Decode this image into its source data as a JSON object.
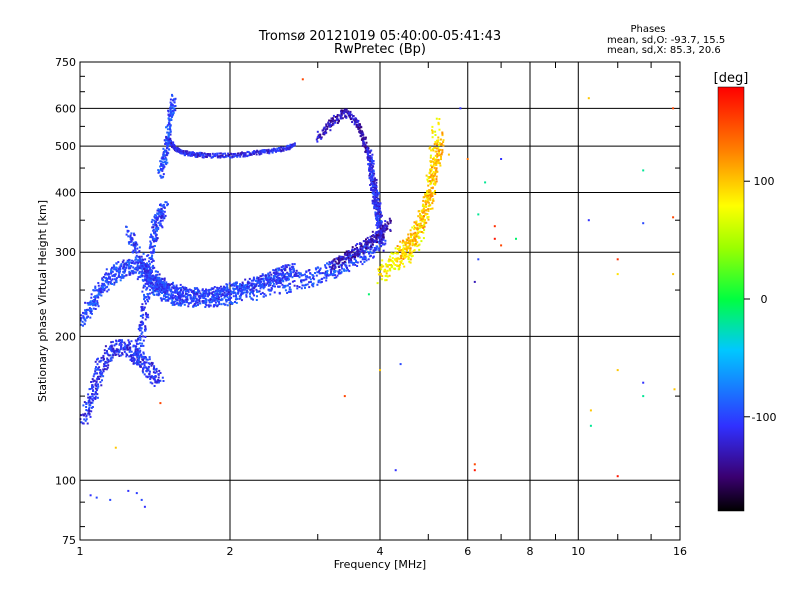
{
  "chart_data": {
    "type": "scatter",
    "title": "Tromsø 20121019 05:40:00-05:41:43",
    "subtitle": "RwPretec (Bp)",
    "xlabel": "Frequency [MHz]",
    "ylabel": "Stationary phase Virtual Height [km]",
    "x_scale": "log",
    "y_scale": "log",
    "xlim": [
      1,
      16
    ],
    "ylim": [
      75,
      750
    ],
    "x_ticks": [
      1,
      2,
      4,
      6,
      8,
      10,
      16
    ],
    "x_tick_labels": [
      "1",
      "2",
      "4",
      "6",
      "8",
      "10",
      "16"
    ],
    "y_ticks": [
      75,
      100,
      200,
      300,
      400,
      500,
      600,
      750
    ],
    "y_tick_labels": [
      "75",
      "100",
      "200",
      "300",
      "400",
      "500",
      "600",
      "750"
    ],
    "grid": true,
    "phases_box": {
      "title": "Phases",
      "line_o": "mean, sd,O: -93.7, 15.5",
      "line_x": "mean, sd,X:  85.3, 20.6"
    },
    "colorbar": {
      "label": "[deg]",
      "range": [
        -180,
        180
      ],
      "ticks": [
        100,
        0,
        -100
      ],
      "tick_labels": [
        "100",
        "0",
        "-100"
      ]
    },
    "traces": [
      {
        "x": [
          1.0,
          1.05,
          1.08,
          1.12,
          1.16,
          1.2,
          1.25,
          1.3,
          1.35,
          1.38,
          1.42,
          1.46,
          1.5,
          1.55,
          1.6,
          1.7,
          1.8,
          1.9,
          2.0,
          2.2,
          2.4,
          2.6,
          2.8,
          3.0,
          3.2,
          3.4,
          3.6,
          3.8,
          4.0
        ],
        "y": [
          215,
          230,
          245,
          258,
          268,
          275,
          280,
          278,
          270,
          262,
          255,
          250,
          246,
          243,
          241,
          240,
          240,
          241,
          243,
          247,
          252,
          257,
          262,
          268,
          275,
          283,
          292,
          302,
          315
        ],
        "phase": -100,
        "spread": 0.06
      },
      {
        "x": [
          1.25,
          1.3,
          1.35,
          1.4,
          1.45,
          1.5,
          1.6,
          1.7,
          1.8,
          1.9,
          2.0,
          2.1,
          2.2,
          2.3,
          2.4,
          2.5,
          2.6,
          2.7
        ],
        "y": [
          330,
          300,
          280,
          268,
          258,
          252,
          246,
          244,
          244,
          246,
          249,
          252,
          256,
          260,
          264,
          268,
          272,
          276
        ],
        "phase": -105,
        "spread": 0.05
      },
      {
        "x": [
          1.02,
          1.05,
          1.08,
          1.1,
          1.15,
          1.2,
          1.25,
          1.3,
          1.35,
          1.4,
          1.45
        ],
        "y": [
          135,
          145,
          160,
          175,
          185,
          190,
          188,
          182,
          175,
          168,
          162
        ],
        "phase": -110,
        "spread": 0.06
      },
      {
        "x": [
          1.3,
          1.33,
          1.35,
          1.38,
          1.4,
          1.42,
          1.45,
          1.48
        ],
        "y": [
          180,
          200,
          230,
          270,
          310,
          340,
          360,
          370
        ],
        "phase": -105,
        "spread": 0.06
      },
      {
        "x": [
          1.5,
          1.55,
          1.6,
          1.7,
          1.8,
          2.0,
          2.2,
          2.4,
          2.6,
          2.7
        ],
        "y": [
          520,
          495,
          485,
          480,
          478,
          478,
          482,
          488,
          495,
          502
        ],
        "phase": -115,
        "spread": 0.015
      },
      {
        "x": [
          1.45,
          1.48,
          1.5,
          1.52,
          1.55
        ],
        "y": [
          440,
          470,
          520,
          580,
          630
        ],
        "phase": -100,
        "spread": 0.04
      },
      {
        "x": [
          3.0,
          3.2,
          3.4,
          3.6,
          3.7,
          3.8,
          3.9,
          3.95,
          4.0
        ],
        "y": [
          520,
          560,
          590,
          560,
          520,
          480,
          420,
          380,
          340
        ],
        "phase": -130,
        "spread": 0.03
      },
      {
        "x": [
          3.8,
          3.85,
          3.9,
          3.95,
          4.0,
          4.05
        ],
        "y": [
          480,
          440,
          400,
          370,
          340,
          310
        ],
        "phase": -110,
        "spread": 0.05
      },
      {
        "x": [
          3.2,
          3.4,
          3.6,
          3.8,
          4.0,
          4.2
        ],
        "y": [
          282,
          292,
          302,
          315,
          328,
          345
        ],
        "phase": -130,
        "spread": 0.04
      },
      {
        "x": [
          4.0,
          4.2,
          4.4,
          4.6,
          4.8,
          5.0,
          5.1,
          5.2
        ],
        "y": [
          270,
          280,
          292,
          305,
          330,
          380,
          450,
          560
        ],
        "phase": 85,
        "spread": 0.07
      },
      {
        "x": [
          4.4,
          4.6,
          4.8,
          5.0,
          5.1,
          5.2,
          5.3
        ],
        "y": [
          300,
          315,
          340,
          380,
          420,
          470,
          520
        ],
        "phase": 105,
        "spread": 0.06
      }
    ],
    "scatter": [
      {
        "x": 1.05,
        "y": 93,
        "phase": -110
      },
      {
        "x": 1.08,
        "y": 92,
        "phase": -100
      },
      {
        "x": 1.15,
        "y": 91,
        "phase": -100
      },
      {
        "x": 1.25,
        "y": 95,
        "phase": -110
      },
      {
        "x": 1.3,
        "y": 94,
        "phase": -105
      },
      {
        "x": 1.33,
        "y": 91,
        "phase": -100
      },
      {
        "x": 1.35,
        "y": 88,
        "phase": -110
      },
      {
        "x": 1.45,
        "y": 145,
        "phase": 150
      },
      {
        "x": 1.18,
        "y": 117,
        "phase": 100
      },
      {
        "x": 2.8,
        "y": 690,
        "phase": 150
      },
      {
        "x": 3.4,
        "y": 150,
        "phase": 150
      },
      {
        "x": 4.3,
        "y": 105,
        "phase": -110
      },
      {
        "x": 4.4,
        "y": 175,
        "phase": -100
      },
      {
        "x": 4.0,
        "y": 170,
        "phase": 100
      },
      {
        "x": 6.2,
        "y": 108,
        "phase": 150
      },
      {
        "x": 6.2,
        "y": 105,
        "phase": 170
      },
      {
        "x": 6.3,
        "y": 360,
        "phase": -20
      },
      {
        "x": 6.3,
        "y": 290,
        "phase": -100
      },
      {
        "x": 6.2,
        "y": 260,
        "phase": -130
      },
      {
        "x": 6.8,
        "y": 340,
        "phase": 160
      },
      {
        "x": 6.8,
        "y": 320,
        "phase": 170
      },
      {
        "x": 7.0,
        "y": 310,
        "phase": 150
      },
      {
        "x": 7.0,
        "y": 470,
        "phase": -110
      },
      {
        "x": 7.5,
        "y": 320,
        "phase": -10
      },
      {
        "x": 6.5,
        "y": 420,
        "phase": -20
      },
      {
        "x": 6.0,
        "y": 470,
        "phase": 130
      },
      {
        "x": 10.5,
        "y": 630,
        "phase": 100
      },
      {
        "x": 10.5,
        "y": 350,
        "phase": -110
      },
      {
        "x": 10.6,
        "y": 140,
        "phase": 100
      },
      {
        "x": 10.6,
        "y": 130,
        "phase": -20
      },
      {
        "x": 12.0,
        "y": 290,
        "phase": 160
      },
      {
        "x": 12.0,
        "y": 270,
        "phase": 90
      },
      {
        "x": 12.0,
        "y": 170,
        "phase": 100
      },
      {
        "x": 12.0,
        "y": 102,
        "phase": 170
      },
      {
        "x": 13.5,
        "y": 345,
        "phase": -100
      },
      {
        "x": 13.5,
        "y": 160,
        "phase": -110
      },
      {
        "x": 13.5,
        "y": 150,
        "phase": -20
      },
      {
        "x": 13.5,
        "y": 445,
        "phase": -20
      },
      {
        "x": 15.5,
        "y": 600,
        "phase": 150
      },
      {
        "x": 15.5,
        "y": 355,
        "phase": 150
      },
      {
        "x": 15.5,
        "y": 270,
        "phase": 100
      },
      {
        "x": 15.6,
        "y": 155,
        "phase": 100
      },
      {
        "x": 3.8,
        "y": 245,
        "phase": -10
      },
      {
        "x": 5.5,
        "y": 480,
        "phase": 100
      },
      {
        "x": 5.8,
        "y": 600,
        "phase": -110
      }
    ]
  }
}
